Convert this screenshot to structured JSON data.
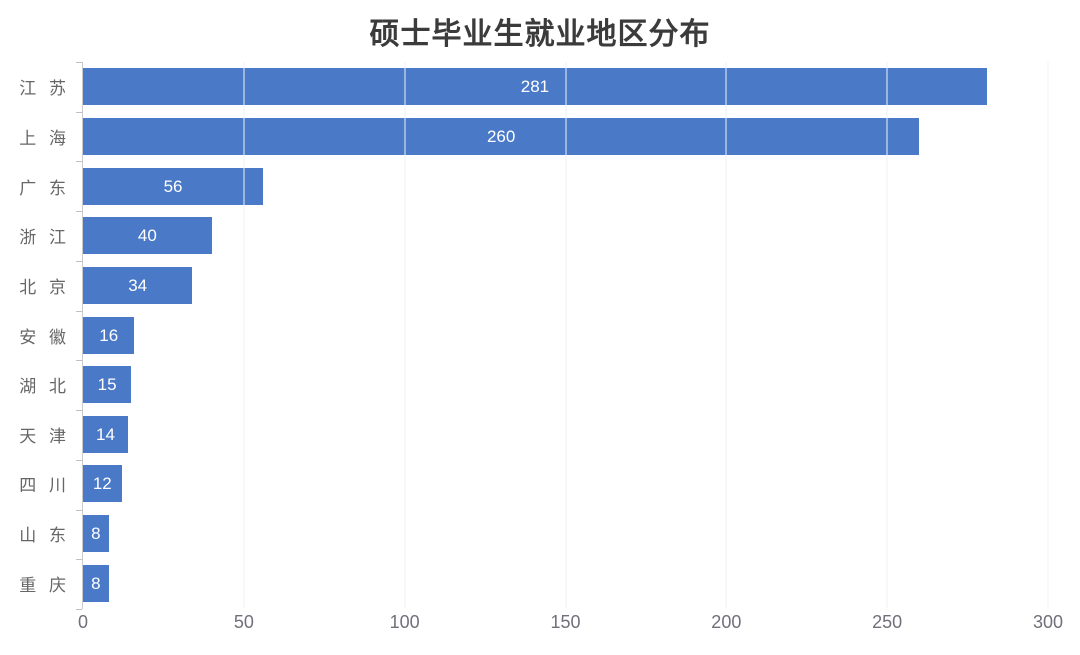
{
  "page": {
    "background": "#ffffff"
  },
  "chart_data": {
    "type": "bar",
    "orientation": "horizontal",
    "title": "硕士毕业生就业地区分布",
    "categories": [
      "江 苏",
      "上 海",
      "广 东",
      "浙 江",
      "北 京",
      "安 徽",
      "湖 北",
      "天 津",
      "四 川",
      "山 东",
      "重 庆"
    ],
    "values": [
      281,
      260,
      56,
      40,
      34,
      16,
      15,
      14,
      12,
      8,
      8
    ],
    "xlabel": "",
    "ylabel": "",
    "xlim": [
      0,
      300
    ],
    "xticks": [
      0,
      50,
      100,
      150,
      200,
      250,
      300
    ],
    "grid": true,
    "legend_position": "none",
    "value_label_position": "inside-center"
  },
  "colors": {
    "bar": "#4a79c8",
    "bar_value_text": "#ffffff",
    "title_text": "#3b3b3b",
    "category_text": "#666666",
    "tick_text": "#70707a",
    "axis_line": "#c9c9ce",
    "tick_mark": "#bfbfc6",
    "gridline": "#eef0f6"
  }
}
